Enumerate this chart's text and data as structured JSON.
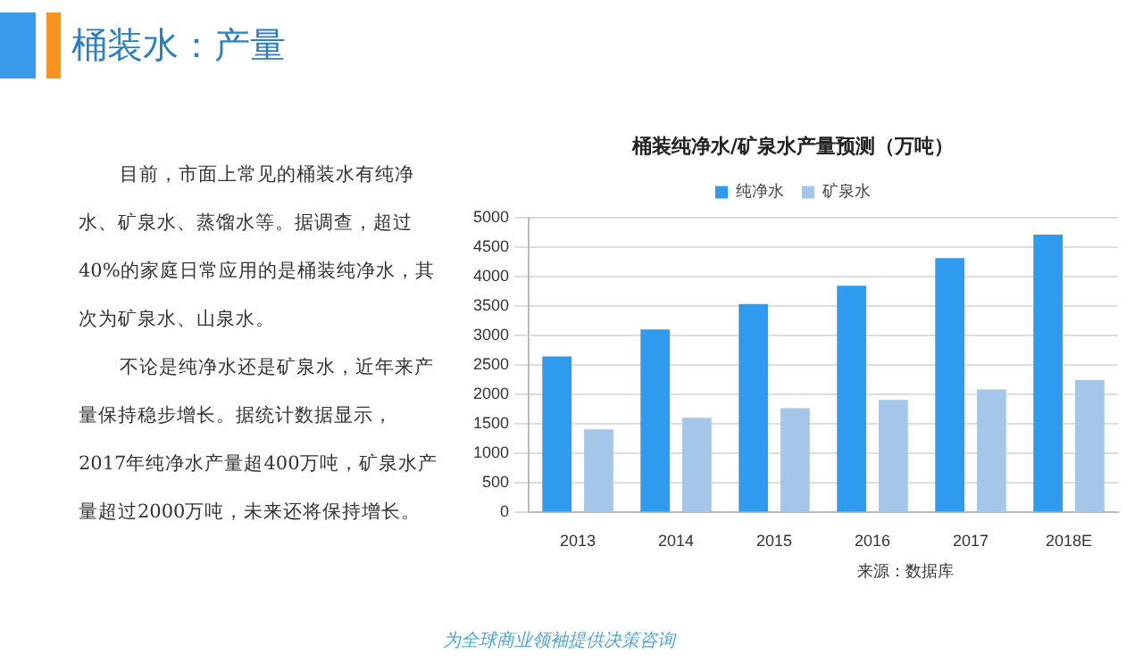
{
  "chart_data": {
    "type": "bar",
    "title": "桶装纯净水/矿泉水产量预测（万吨）",
    "categories": [
      "2013",
      "2014",
      "2015",
      "2016",
      "2017",
      "2018E"
    ],
    "series": [
      {
        "name": "纯净水",
        "color": "#2e9bef",
        "values": [
          2650,
          3110,
          3540,
          3850,
          4320,
          4720
        ]
      },
      {
        "name": "矿泉水",
        "color": "#a4c6e9",
        "values": [
          1410,
          1610,
          1770,
          1910,
          2090,
          2250
        ]
      }
    ],
    "ylim": [
      0,
      5000
    ],
    "yticks": [
      0,
      500,
      1000,
      1500,
      2000,
      2500,
      3000,
      3500,
      4000,
      4500,
      5000
    ],
    "grid": "y",
    "legend": "top",
    "annotations": [
      "桶装水：产量",
      "目前，市面上常见的桶装水有纯净水、矿泉水、蒸馏水等。据调查，超过40%的家庭日常应用的是桶装纯净水，其次为矿泉水、山泉水。",
      "不论是纯净水还是矿泉水，近年来产量保持稳步增长。据统计数据显示，2017年纯净水产量超400万吨，矿泉水产量超过2000万吨，未来还将保持增长。",
      "来源：数据库",
      "为全球商业领袖提供决策咨询"
    ]
  }
}
